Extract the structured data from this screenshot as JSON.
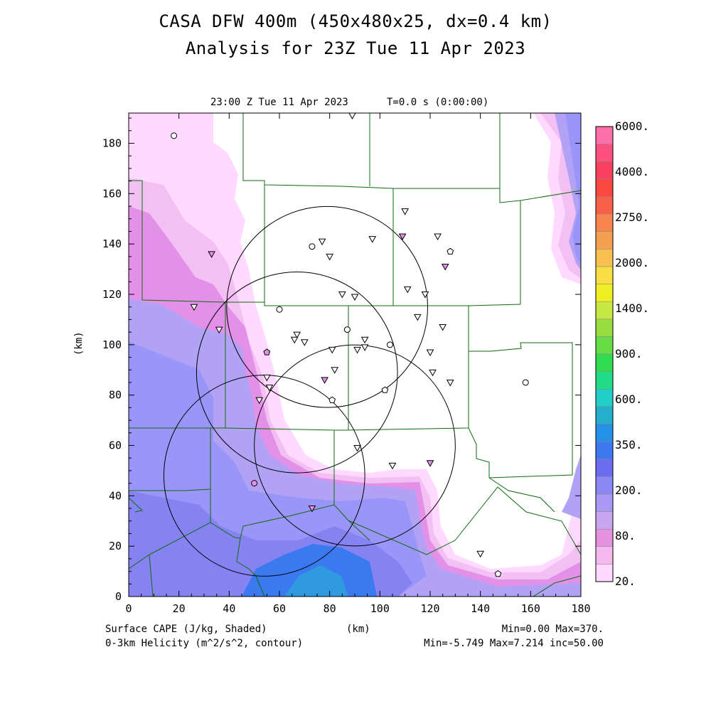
{
  "header": {
    "title_line1": "CASA DFW 400m (450x480x25, dx=0.4 km)",
    "title_line2": "Analysis for 23Z Tue 11 Apr 2023",
    "valid_time": "23:00 Z Tue 11 Apr 2023",
    "forecast_time": "T=0.0 s (0:00:00)"
  },
  "footer": {
    "left_line1": "Surface CAPE (J/kg, Shaded)",
    "left_line2": "0-3km Helicity (m^2/s^2, contour)",
    "center_unit": "(km)",
    "right_line1": "Min=0.00 Max=370.",
    "right_line2": "Min=-5.749 Max=7.214 inc=50.00"
  },
  "chart_data": {
    "type": "heatmap",
    "xlabel": "",
    "ylabel": "(km)",
    "xlim": [
      0,
      180
    ],
    "ylim": [
      0,
      192
    ],
    "x_ticks": [
      0,
      20,
      40,
      60,
      80,
      100,
      120,
      140,
      160,
      180
    ],
    "y_ticks": [
      0,
      20,
      40,
      60,
      80,
      100,
      120,
      140,
      160,
      180
    ],
    "colorbar": {
      "levels": [
        "20.",
        "",
        "80.",
        "",
        "200.",
        "",
        "350.",
        "",
        "600.",
        "",
        "900.",
        "",
        "1400.",
        "",
        "2000.",
        "",
        "2750.",
        "",
        "4000.",
        "",
        "6000."
      ],
      "colors": [
        "#ffd9ff",
        "#f5b9f0",
        "#e690e0",
        "#c8a5ee",
        "#a999f5",
        "#8a88f5",
        "#6b6cf0",
        "#3c78f0",
        "#2590e8",
        "#23aecd",
        "#22cec8",
        "#22dd88",
        "#30dd50",
        "#66dd44",
        "#99dd44",
        "#c8e844",
        "#eeee22",
        "#f8dd44",
        "#f8c050",
        "#f5a050",
        "#f88450",
        "#fa6048",
        "#fa4840",
        "#fa4060",
        "#fc5080",
        "#fc70aa"
      ]
    },
    "shading_colors": {
      "light_pink": "#ffd9ff",
      "pink": "#f2c0f2",
      "magenta": "#e391e8",
      "lavender": "#b1a2f5",
      "periwinkle": "#9a95f8",
      "blue_purple": "#8583f2",
      "blue": "#3b79f0",
      "teal": "#2f9adf"
    },
    "cape_range": [
      0,
      370
    ],
    "helicity_range": [
      -5.749,
      7.214
    ],
    "helicity_contour_interval": 50,
    "radar_rings": [
      {
        "center": [
          79,
          115
        ],
        "radius": 40
      },
      {
        "center": [
          67,
          89
        ],
        "radius": 40
      },
      {
        "center": [
          90,
          60
        ],
        "radius": 40
      },
      {
        "center": [
          54,
          48
        ],
        "radius": 40
      }
    ],
    "stations": [
      {
        "x": 18,
        "y": 183,
        "symbol": "circle"
      },
      {
        "x": 89,
        "y": 191,
        "symbol": "triangle"
      },
      {
        "x": 110,
        "y": 153,
        "symbol": "triangle"
      },
      {
        "x": 109,
        "y": 143,
        "symbol": "triangle-filled"
      },
      {
        "x": 97,
        "y": 142,
        "symbol": "triangle"
      },
      {
        "x": 123,
        "y": 143,
        "symbol": "triangle"
      },
      {
        "x": 128,
        "y": 137,
        "symbol": "pentagon"
      },
      {
        "x": 126,
        "y": 131,
        "symbol": "triangle-filled"
      },
      {
        "x": 77,
        "y": 141,
        "symbol": "triangle"
      },
      {
        "x": 73,
        "y": 139,
        "symbol": "circle"
      },
      {
        "x": 80,
        "y": 135,
        "symbol": "triangle"
      },
      {
        "x": 33,
        "y": 136,
        "symbol": "triangle-filled"
      },
      {
        "x": 111,
        "y": 122,
        "symbol": "triangle"
      },
      {
        "x": 118,
        "y": 120,
        "symbol": "triangle"
      },
      {
        "x": 85,
        "y": 120,
        "symbol": "triangle"
      },
      {
        "x": 90,
        "y": 119,
        "symbol": "triangle"
      },
      {
        "x": 26,
        "y": 115,
        "symbol": "triangle"
      },
      {
        "x": 60,
        "y": 114,
        "symbol": "circle"
      },
      {
        "x": 115,
        "y": 111,
        "symbol": "triangle"
      },
      {
        "x": 36,
        "y": 106,
        "symbol": "triangle"
      },
      {
        "x": 125,
        "y": 107,
        "symbol": "triangle"
      },
      {
        "x": 87,
        "y": 106,
        "symbol": "circle"
      },
      {
        "x": 67,
        "y": 104,
        "symbol": "triangle"
      },
      {
        "x": 66,
        "y": 102,
        "symbol": "triangle"
      },
      {
        "x": 70,
        "y": 101,
        "symbol": "triangle"
      },
      {
        "x": 94,
        "y": 102,
        "symbol": "triangle"
      },
      {
        "x": 104,
        "y": 100,
        "symbol": "circle"
      },
      {
        "x": 91,
        "y": 98,
        "symbol": "triangle"
      },
      {
        "x": 94,
        "y": 99,
        "symbol": "triangle"
      },
      {
        "x": 81,
        "y": 98,
        "symbol": "triangle"
      },
      {
        "x": 55,
        "y": 97,
        "symbol": "pentagon-filled"
      },
      {
        "x": 120,
        "y": 97,
        "symbol": "triangle"
      },
      {
        "x": 82,
        "y": 90,
        "symbol": "triangle"
      },
      {
        "x": 121,
        "y": 89,
        "symbol": "triangle"
      },
      {
        "x": 55,
        "y": 87,
        "symbol": "triangle"
      },
      {
        "x": 78,
        "y": 86,
        "symbol": "triangle-filled"
      },
      {
        "x": 128,
        "y": 85,
        "symbol": "triangle"
      },
      {
        "x": 56,
        "y": 83,
        "symbol": "triangle"
      },
      {
        "x": 102,
        "y": 82,
        "symbol": "pentagon"
      },
      {
        "x": 158,
        "y": 85,
        "symbol": "circle"
      },
      {
        "x": 52,
        "y": 78,
        "symbol": "triangle"
      },
      {
        "x": 81,
        "y": 78,
        "symbol": "pentagon"
      },
      {
        "x": 91,
        "y": 59,
        "symbol": "triangle"
      },
      {
        "x": 120,
        "y": 53,
        "symbol": "triangle-filled"
      },
      {
        "x": 105,
        "y": 52,
        "symbol": "triangle"
      },
      {
        "x": 50,
        "y": 45,
        "symbol": "circle-filled"
      },
      {
        "x": 73,
        "y": 35,
        "symbol": "triangle-filled"
      },
      {
        "x": 140,
        "y": 17,
        "symbol": "triangle"
      },
      {
        "x": 147,
        "y": 9,
        "symbol": "pentagon"
      }
    ]
  }
}
